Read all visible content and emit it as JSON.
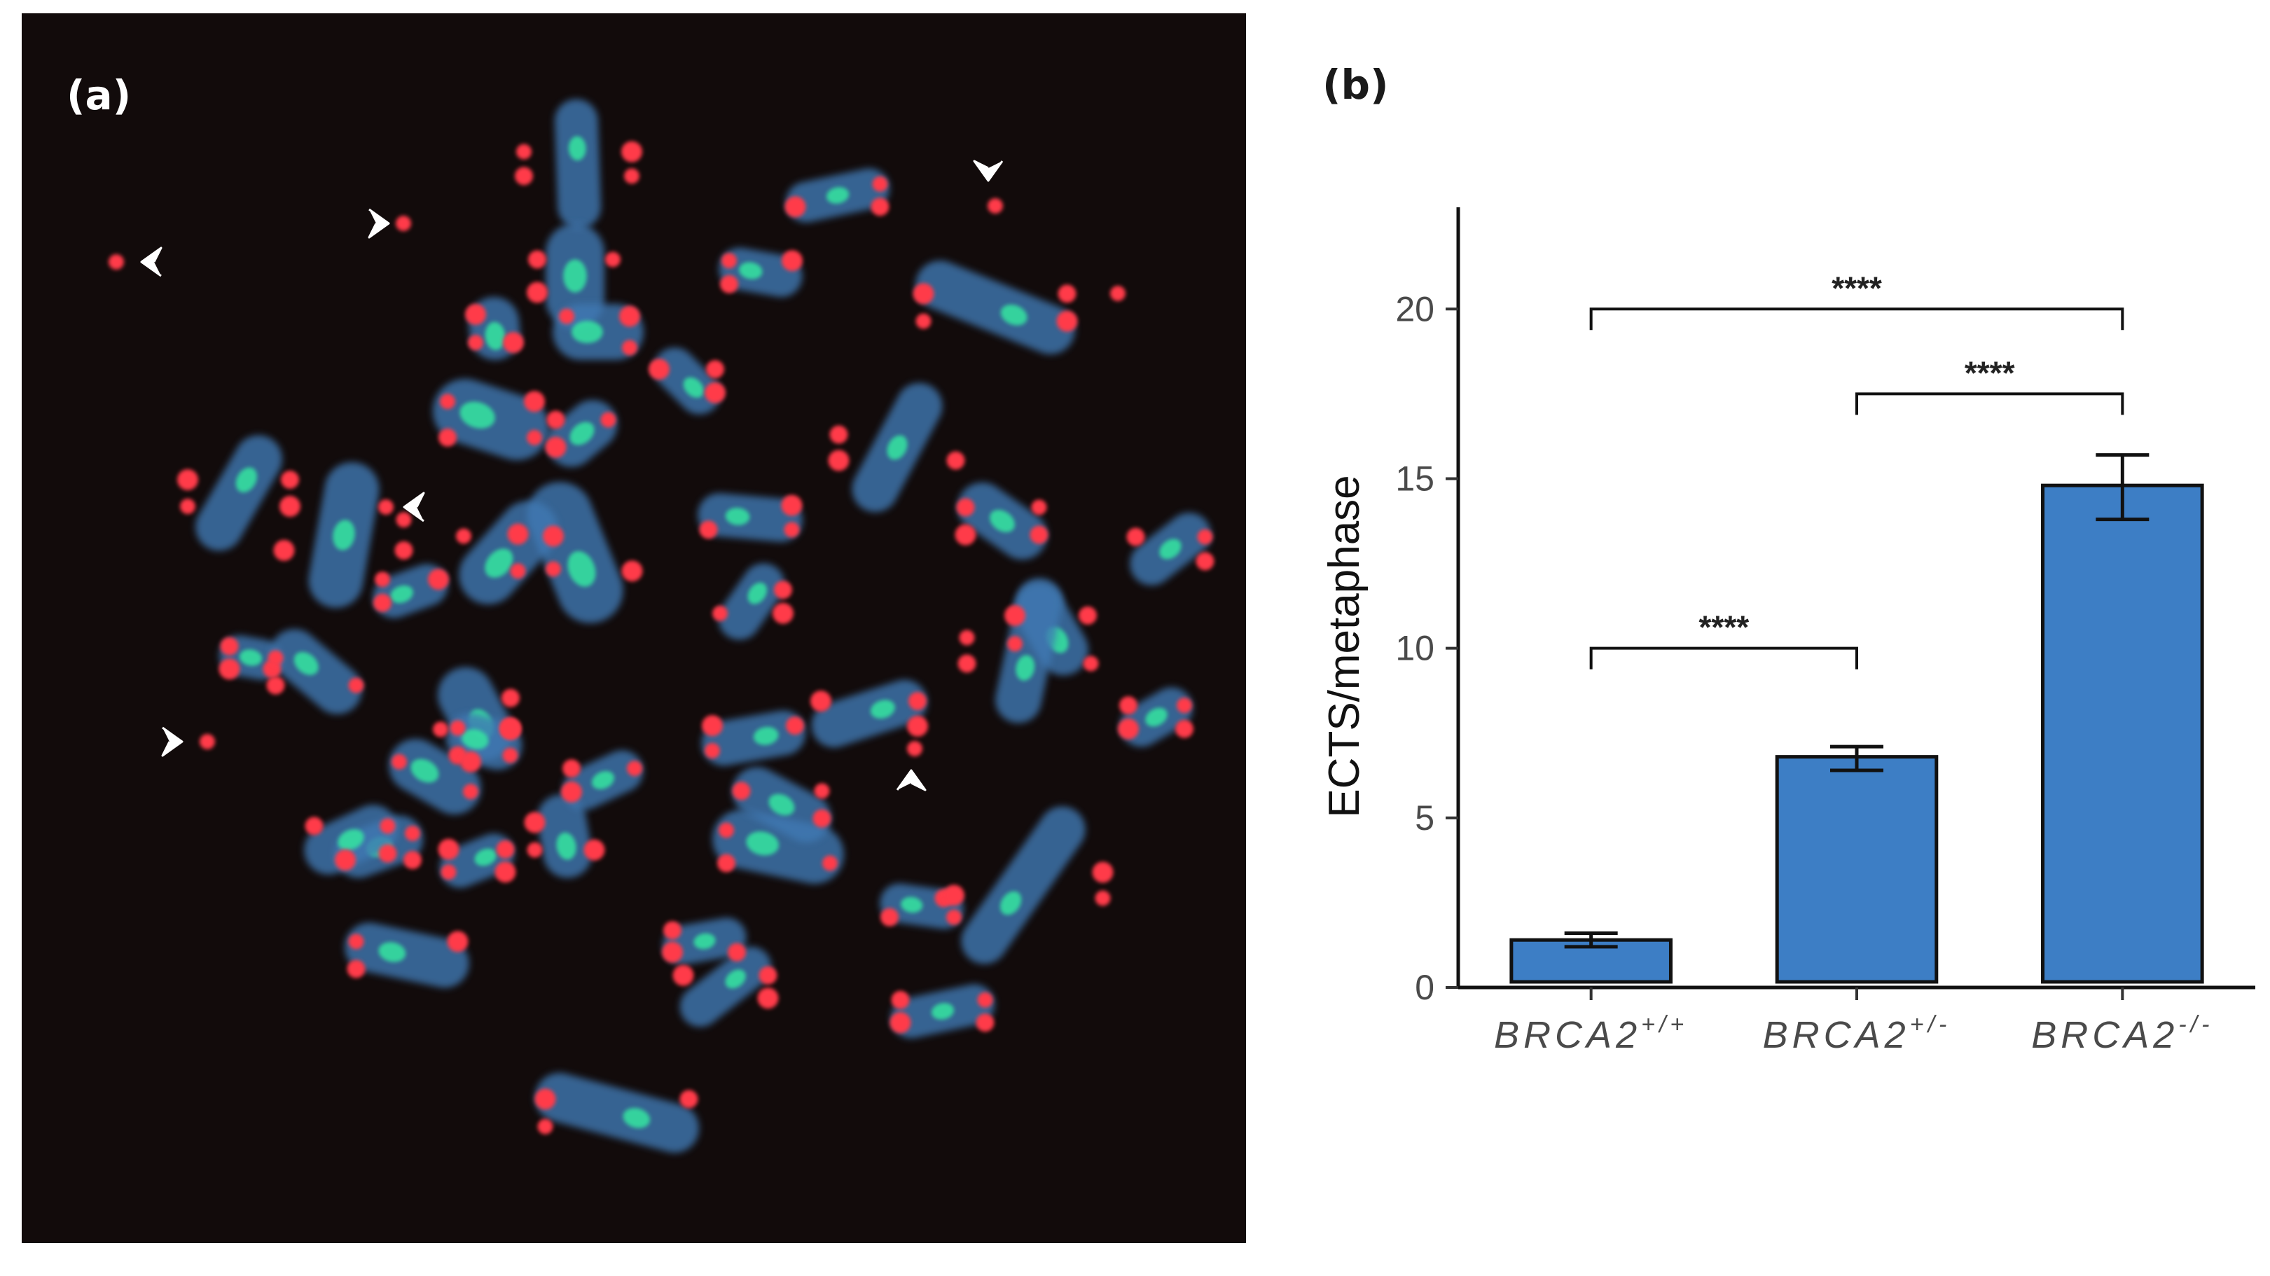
{
  "panel_a": {
    "label": "(a)",
    "colors": {
      "background": "#120b0b",
      "chromosome": "#3f79b4",
      "telomere": "#ff3b48",
      "centromere": "#35e6a0",
      "arrowhead": "#ffffff"
    }
  },
  "panel_b": {
    "label": "(b)"
  },
  "chart_data": {
    "type": "bar",
    "categories": [
      "BRCA2+/+",
      "BRCA2+/-",
      "BRCA2-/-"
    ],
    "category_base": [
      "BRCA2",
      "BRCA2",
      "BRCA2"
    ],
    "category_superscripts": [
      "+/+",
      "+/-",
      "-/-"
    ],
    "values": [
      1.4,
      6.8,
      14.8
    ],
    "error_low": [
      1.2,
      6.4,
      13.8
    ],
    "error_high": [
      1.6,
      7.1,
      15.7
    ],
    "ylabel": "ECTS/metaphase",
    "xlabel": "",
    "ylim": [
      0,
      23
    ],
    "yticks": [
      0,
      5,
      10,
      15,
      20
    ],
    "ytick_labels": [
      "0",
      "5",
      "10",
      "15",
      "20"
    ],
    "grid": false,
    "bar_color": "#3d7ec5",
    "bar_edge_color": "#111111",
    "significance": [
      {
        "from": 0,
        "to": 1,
        "y": 10,
        "label": "****"
      },
      {
        "from": 1,
        "to": 2,
        "y": 17.5,
        "label": "****"
      },
      {
        "from": 0,
        "to": 2,
        "y": 20,
        "label": "****"
      }
    ]
  }
}
